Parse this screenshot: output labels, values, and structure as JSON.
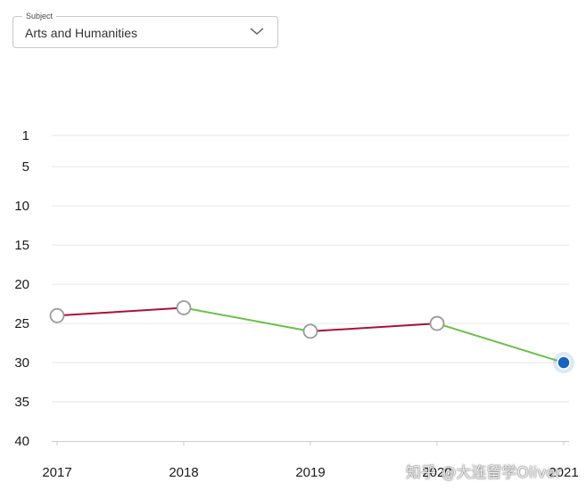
{
  "filter": {
    "legend": "Subject",
    "selected": "Arts and Humanities",
    "icon": "chevron-down-icon"
  },
  "chart_data": {
    "type": "line",
    "title": "",
    "xlabel": "",
    "ylabel": "",
    "x": [
      "2017",
      "2018",
      "2019",
      "2020",
      "2021"
    ],
    "values": [
      24,
      23,
      26,
      25,
      30
    ],
    "y_ticks": [
      1,
      5,
      10,
      15,
      20,
      25,
      30,
      35,
      40
    ],
    "ylim": [
      1,
      40
    ],
    "y_inverted": true,
    "grid": true,
    "colors": {
      "improving": "#6cc04a",
      "declining": "#a8123a",
      "point_fill": "#ffffff",
      "point_stroke": "#999999",
      "highlight": "#1565c0",
      "gridline": "#e6e6e6",
      "axis": "#cccccc"
    },
    "highlighted_point": "2021"
  },
  "watermark": "知乎 @大连留学Oliver"
}
